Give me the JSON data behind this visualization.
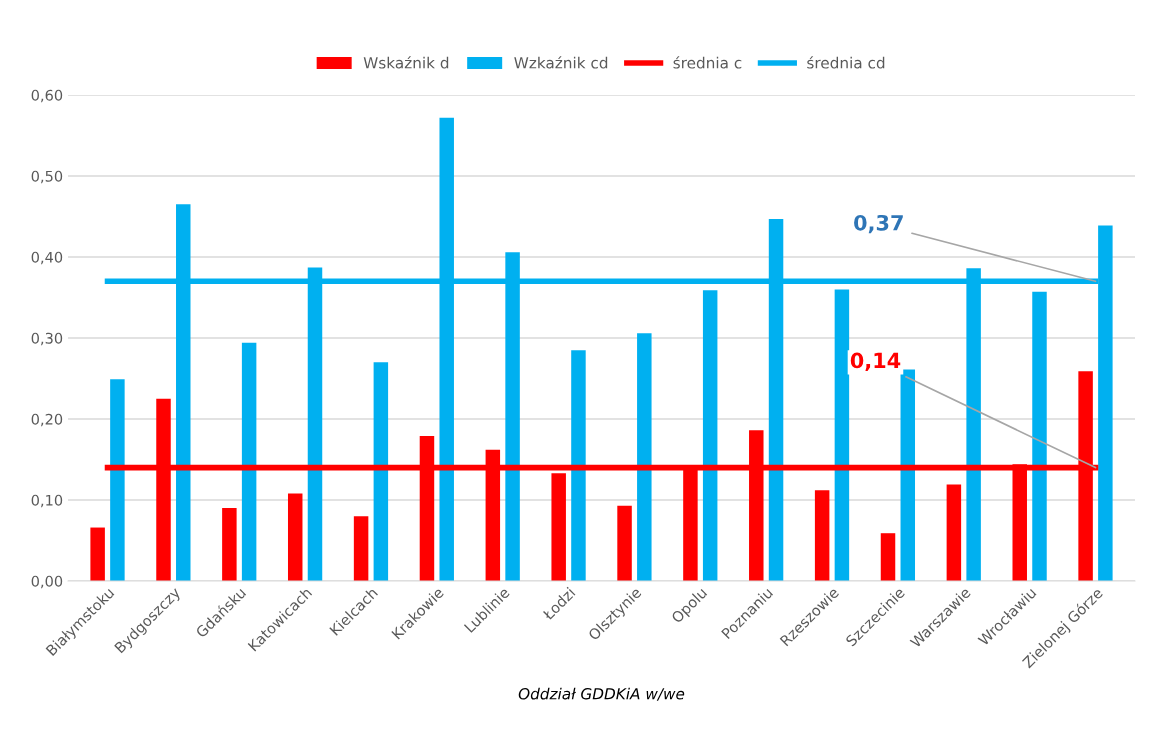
{
  "chart_data": {
    "type": "bar",
    "xlabel": "Oddział GDDKiA w/we",
    "categories": [
      "Białymstoku",
      "Bydgoszczy",
      "Gdańsku",
      "Katowicach",
      "Kielcach",
      "Krakowie",
      "Lublinie",
      "Łodzi",
      "Olsztynie",
      "Opolu",
      "Poznaniu",
      "Rzeszowie",
      "Szczecinie",
      "Warszawie",
      "Wrocławiu",
      "Zielonej Górze"
    ],
    "series": [
      {
        "name": "Wskaźnik d",
        "color": "#ff0000",
        "values": [
          0.066,
          0.225,
          0.09,
          0.108,
          0.08,
          0.179,
          0.162,
          0.133,
          0.093,
          0.139,
          0.186,
          0.112,
          0.059,
          0.119,
          0.144,
          0.259
        ]
      },
      {
        "name": "Wzkaźnik cd",
        "color": "#00b0f0",
        "values": [
          0.249,
          0.465,
          0.294,
          0.387,
          0.27,
          0.572,
          0.406,
          0.285,
          0.306,
          0.359,
          0.447,
          0.36,
          0.261,
          0.386,
          0.357,
          0.439
        ]
      },
      {
        "name": "średnia c",
        "type": "line",
        "color": "#ff0000",
        "values": [
          0.14,
          0.14,
          0.14,
          0.14,
          0.14,
          0.14,
          0.14,
          0.14,
          0.14,
          0.14,
          0.14,
          0.14,
          0.14,
          0.14,
          0.14,
          0.14
        ]
      },
      {
        "name": "średnia cd",
        "type": "line",
        "color": "#00b0f0",
        "values": [
          0.37,
          0.37,
          0.37,
          0.37,
          0.37,
          0.37,
          0.37,
          0.37,
          0.37,
          0.37,
          0.37,
          0.37,
          0.37,
          0.37,
          0.37,
          0.37
        ]
      }
    ],
    "annotations": [
      {
        "text": "0,37",
        "x": "Zielonej Górze",
        "y": 0.37
      },
      {
        "text": "0,14",
        "x": "Zielonej Górze",
        "y": 0.14
      }
    ],
    "ylim": [
      0,
      0.6
    ],
    "yticks": [
      {
        "value": 0,
        "label": "0,00"
      },
      {
        "value": 0.1,
        "label": "0,10"
      },
      {
        "value": 0.2,
        "label": "0,20"
      },
      {
        "value": 0.3,
        "label": "0,30"
      },
      {
        "value": 0.4,
        "label": "0,40"
      },
      {
        "value": 0.5,
        "label": "0,50"
      },
      {
        "value": 0.6,
        "label": "0,60"
      }
    ],
    "grid": "y",
    "legend": "top"
  }
}
